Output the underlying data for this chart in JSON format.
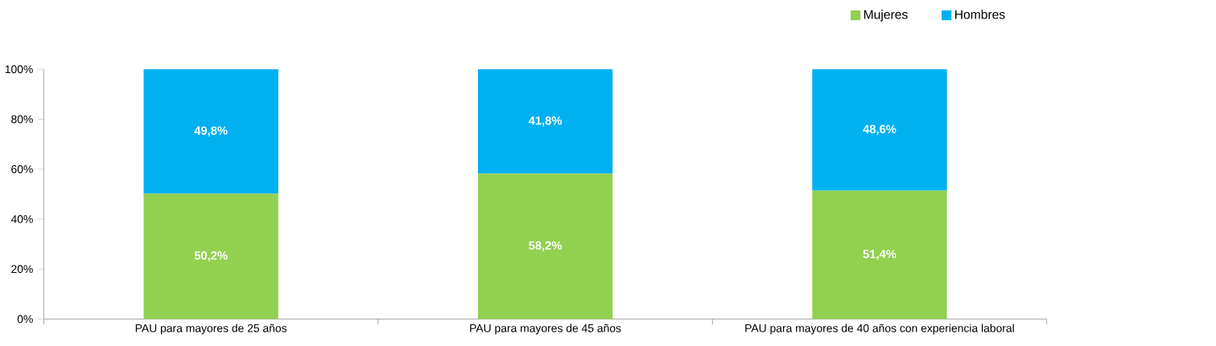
{
  "chart_data": {
    "type": "bar",
    "stacked": true,
    "categories": [
      "PAU para mayores de 25 años",
      "PAU para mayores de 45 años",
      "PAU para mayores de 40 años con experiencia laboral"
    ],
    "series": [
      {
        "name": "Mujeres",
        "color": "#92d050",
        "values": [
          50.2,
          58.2,
          51.4
        ],
        "value_labels": [
          "50,2%",
          "58,2%",
          "51,4%"
        ]
      },
      {
        "name": "Hombres",
        "color": "#00b0f0",
        "values": [
          49.8,
          41.8,
          48.6
        ],
        "value_labels": [
          "49,8%",
          "41,8%",
          "48,6%"
        ]
      }
    ],
    "ylim": [
      0,
      100
    ],
    "yticks": [
      {
        "value": 0,
        "label": "0%"
      },
      {
        "value": 20,
        "label": "20%"
      },
      {
        "value": 40,
        "label": "40%"
      },
      {
        "value": 60,
        "label": "60%"
      },
      {
        "value": 80,
        "label": "80%"
      },
      {
        "value": 100,
        "label": "100%"
      }
    ],
    "legend": "top right",
    "grid": false
  }
}
